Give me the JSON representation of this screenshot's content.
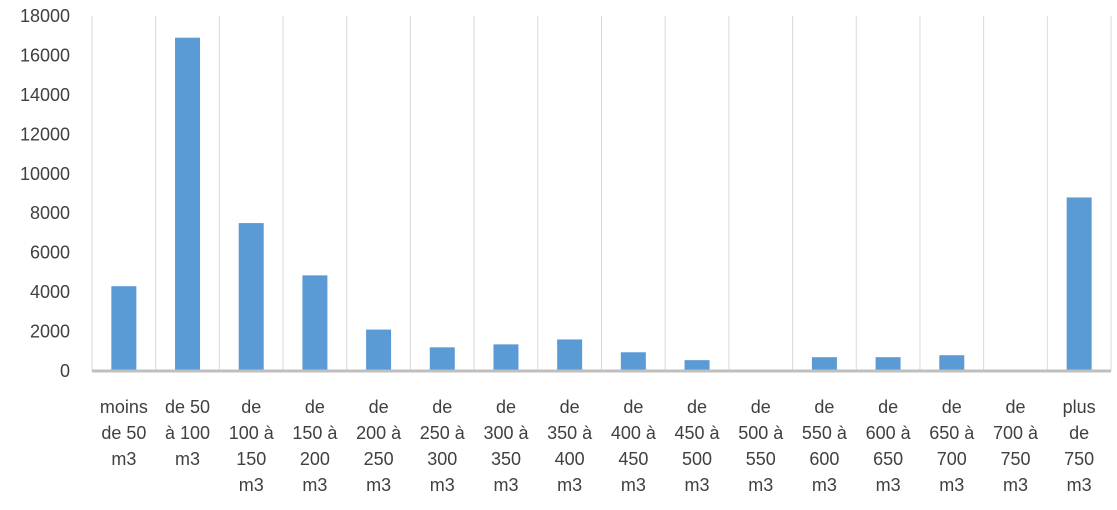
{
  "chart_data": {
    "type": "bar",
    "title": "",
    "xlabel": "",
    "ylabel": "",
    "ylim": [
      0,
      18000
    ],
    "yticks": [
      0,
      2000,
      4000,
      6000,
      8000,
      10000,
      12000,
      14000,
      16000,
      18000
    ],
    "grid": "vertical category separators",
    "legend": "none",
    "bar_color": "#5B9BD5",
    "axis_color": "#BFBFBF",
    "grid_color": "#D9D9D9",
    "categories": [
      [
        "moins",
        "de 50",
        "m3"
      ],
      [
        "de 50",
        "à 100",
        "m3"
      ],
      [
        "de",
        "100 à",
        "150",
        "m3"
      ],
      [
        "de",
        "150 à",
        "200",
        "m3"
      ],
      [
        "de",
        "200 à",
        "250",
        "m3"
      ],
      [
        "de",
        "250 à",
        "300",
        "m3"
      ],
      [
        "de",
        "300 à",
        "350",
        "m3"
      ],
      [
        "de",
        "350 à",
        "400",
        "m3"
      ],
      [
        "de",
        "400 à",
        "450",
        "m3"
      ],
      [
        "de",
        "450 à",
        "500",
        "m3"
      ],
      [
        "de",
        "500 à",
        "550",
        "m3"
      ],
      [
        "de",
        "550 à",
        "600",
        "m3"
      ],
      [
        "de",
        "600 à",
        "650",
        "m3"
      ],
      [
        "de",
        "650 à",
        "700",
        "m3"
      ],
      [
        "de",
        "700 à",
        "750",
        "m3"
      ],
      [
        "plus",
        "de",
        "750",
        "m3"
      ]
    ],
    "values": [
      4300,
      16900,
      7500,
      4850,
      2100,
      1200,
      1350,
      1600,
      950,
      550,
      0,
      700,
      700,
      800,
      0,
      8800
    ]
  }
}
